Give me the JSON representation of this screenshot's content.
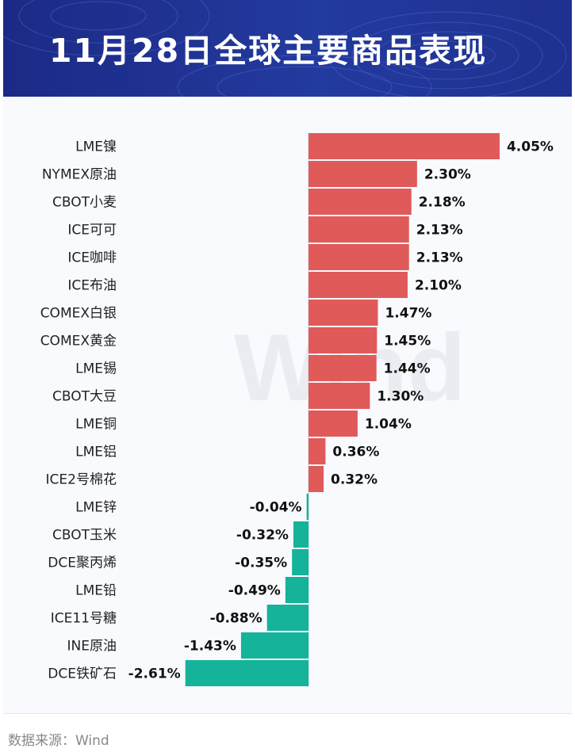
{
  "banner": {
    "title": "11月28日全球主要商品表现"
  },
  "watermark": "Wind",
  "footer": {
    "source": "数据来源：Wind"
  },
  "colors": {
    "positive": "#e05a5a",
    "negative": "#14b39a",
    "banner": "#1f3091"
  },
  "chart_data": {
    "type": "bar",
    "orientation": "horizontal",
    "title": "11月28日全球主要商品表现",
    "unit": "%",
    "categories": [
      "LME镍",
      "NYMEX原油",
      "CBOT小麦",
      "ICE可可",
      "ICE咖啡",
      "ICE布油",
      "COMEX白银",
      "COMEX黄金",
      "LME锡",
      "CBOT大豆",
      "LME铜",
      "LME铝",
      "ICE2号棉花",
      "LME锌",
      "CBOT玉米",
      "DCE聚丙烯",
      "LME铅",
      "ICE11号糖",
      "INE原油",
      "DCE铁矿石"
    ],
    "values": [
      4.05,
      2.3,
      2.18,
      2.13,
      2.13,
      2.1,
      1.47,
      1.45,
      1.44,
      1.3,
      1.04,
      0.36,
      0.32,
      -0.04,
      -0.32,
      -0.35,
      -0.49,
      -0.88,
      -1.43,
      -2.61
    ],
    "labels": [
      "4.05%",
      "2.30%",
      "2.18%",
      "2.13%",
      "2.13%",
      "2.10%",
      "1.47%",
      "1.45%",
      "1.44%",
      "1.30%",
      "1.04%",
      "0.36%",
      "0.32%",
      "-0.04%",
      "-0.32%",
      "-0.35%",
      "-0.49%",
      "-0.88%",
      "-1.43%",
      "-2.61%"
    ],
    "grid": false,
    "legend": "none"
  }
}
